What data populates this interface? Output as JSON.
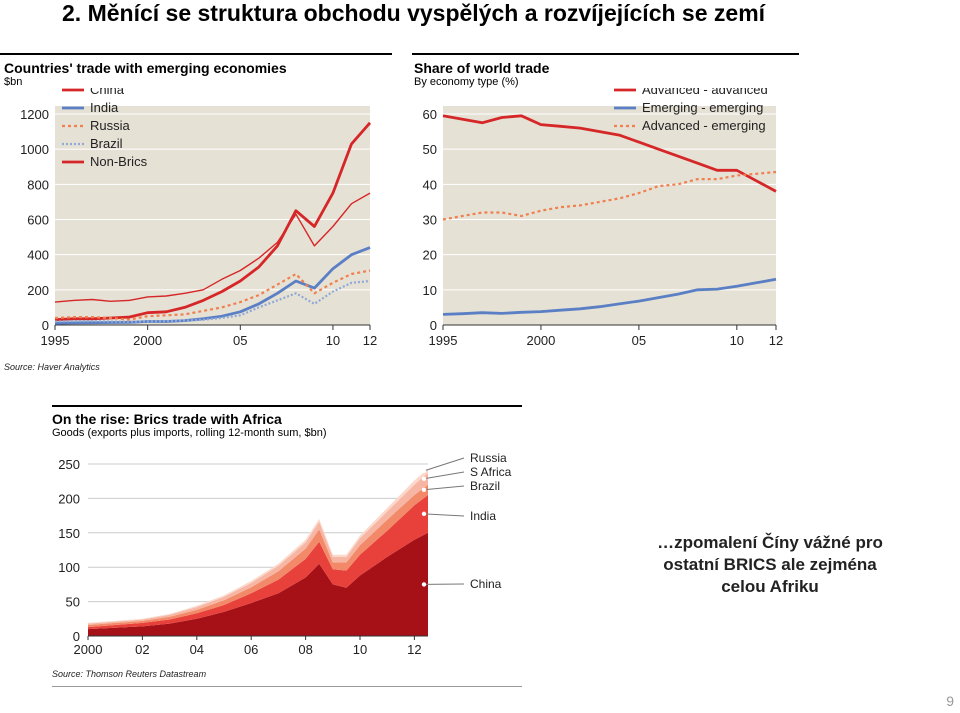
{
  "slide": {
    "title": "2. Měnící se struktura obchodu vyspělých a rozvíjejících se zemí",
    "note_lines": [
      "…zpomalení Číny vážné pro",
      "ostatní BRICS ale zejména",
      "celou Afriku"
    ],
    "page_number": "9"
  },
  "chart_data": [
    {
      "type": "line",
      "title": "Countries' trade with emerging economies",
      "subtitle": "$bn",
      "x": [
        1995,
        1996,
        1997,
        1998,
        1999,
        2000,
        2001,
        2002,
        2003,
        2004,
        2005,
        2006,
        2007,
        2008,
        2009,
        2010,
        2011,
        2012
      ],
      "x_ticks": [
        1995,
        2000,
        2005,
        2010,
        2012
      ],
      "x_tick_labels": [
        "1995",
        "2000",
        "05",
        "10",
        "12"
      ],
      "ylim": [
        0,
        1200
      ],
      "y_ticks": [
        0,
        200,
        400,
        600,
        800,
        1000,
        1200
      ],
      "series": [
        {
          "name": "China",
          "color": "#d62728",
          "values": [
            30,
            35,
            35,
            40,
            45,
            70,
            75,
            100,
            140,
            190,
            250,
            330,
            450,
            650,
            560,
            750,
            1030,
            1150
          ]
        },
        {
          "name": "India",
          "color": "#5a7fc5",
          "values": [
            10,
            12,
            13,
            14,
            15,
            20,
            20,
            25,
            35,
            50,
            75,
            120,
            180,
            250,
            210,
            320,
            400,
            440
          ]
        },
        {
          "name": "Russia",
          "color": "#f08050",
          "values": [
            40,
            45,
            45,
            40,
            30,
            50,
            55,
            60,
            80,
            100,
            130,
            170,
            230,
            290,
            180,
            240,
            290,
            310
          ]
        },
        {
          "name": "Brazil",
          "color": "#8fa8d8",
          "values": [
            20,
            22,
            22,
            20,
            18,
            20,
            22,
            25,
            30,
            40,
            55,
            100,
            140,
            180,
            120,
            190,
            240,
            250
          ]
        },
        {
          "name": "Non-Brics",
          "color": "#d62728",
          "values": [
            130,
            140,
            145,
            135,
            140,
            160,
            165,
            180,
            200,
            260,
            310,
            380,
            470,
            630,
            450,
            560,
            690,
            750
          ]
        }
      ]
    },
    {
      "type": "line",
      "title": "Share of world trade",
      "subtitle": "By economy type",
      "subtitle_unit": "(%)",
      "x": [
        1995,
        1996,
        1997,
        1998,
        1999,
        2000,
        2001,
        2002,
        2003,
        2004,
        2005,
        2006,
        2007,
        2008,
        2009,
        2010,
        2011,
        2012
      ],
      "x_ticks": [
        1995,
        2000,
        2005,
        2010,
        2012
      ],
      "x_tick_labels": [
        "1995",
        "2000",
        "05",
        "10",
        "12"
      ],
      "ylim": [
        0,
        60
      ],
      "y_ticks": [
        0,
        10,
        20,
        30,
        40,
        50,
        60
      ],
      "series": [
        {
          "name": "Advanced - advanced",
          "color": "#d62728",
          "values": [
            59.5,
            58.5,
            57.5,
            59,
            59.5,
            57,
            56.5,
            56,
            55,
            54,
            52,
            50,
            48,
            46,
            44,
            44,
            41,
            38
          ]
        },
        {
          "name": "Emerging - emerging",
          "color": "#5a7fc5",
          "values": [
            3,
            3.2,
            3.5,
            3.3,
            3.6,
            3.8,
            4.2,
            4.6,
            5.2,
            6,
            6.8,
            7.8,
            8.8,
            10,
            10.2,
            11,
            12,
            13
          ]
        },
        {
          "name": "Advanced - emerging",
          "color": "#f08050",
          "values": [
            30,
            31,
            32,
            32,
            31,
            32.5,
            33.5,
            34,
            35,
            36,
            37.5,
            39.5,
            40,
            41.5,
            41.5,
            42.5,
            43,
            43.5
          ]
        }
      ]
    },
    {
      "type": "area",
      "title": "On the rise: Brics trade with Africa",
      "subtitle": "Goods (exports plus imports, rolling 12-month sum, $bn)",
      "x": [
        2000,
        2001,
        2002,
        2003,
        2004,
        2005,
        2006,
        2007,
        2008,
        2008.5,
        2009,
        2009.5,
        2010,
        2011,
        2012,
        2012.5
      ],
      "x_ticks": [
        2000,
        2002,
        2004,
        2006,
        2008,
        2010,
        2012
      ],
      "x_tick_labels": [
        "2000",
        "02",
        "04",
        "06",
        "08",
        "10",
        "12"
      ],
      "ylim": [
        0,
        250
      ],
      "y_ticks": [
        0,
        50,
        100,
        150,
        200,
        250
      ],
      "series": [
        {
          "name": "China",
          "color": "#a51116",
          "values": [
            10,
            12,
            14,
            18,
            25,
            35,
            48,
            62,
            85,
            105,
            75,
            70,
            88,
            115,
            140,
            150
          ]
        },
        {
          "name": "India",
          "color": "#e8413c",
          "values": [
            3,
            4,
            5,
            6,
            8,
            10,
            14,
            20,
            27,
            32,
            22,
            25,
            30,
            38,
            50,
            55
          ]
        },
        {
          "name": "Brazil",
          "color": "#f28a6a",
          "values": [
            3,
            3,
            3,
            4,
            5,
            7,
            9,
            12,
            15,
            18,
            10,
            12,
            14,
            16,
            15,
            15
          ]
        },
        {
          "name": "S Africa",
          "color": "#f7b6a3",
          "values": [
            2,
            2,
            2,
            3,
            4,
            5,
            6,
            8,
            9,
            11,
            8,
            8,
            10,
            12,
            15,
            17
          ]
        },
        {
          "name": "Russia",
          "color": "#fbd8ca",
          "values": [
            1,
            1,
            1,
            1,
            2,
            2,
            3,
            3,
            4,
            4,
            3,
            3,
            4,
            5,
            6,
            6
          ]
        }
      ]
    }
  ],
  "sources": {
    "top": "Source: Haver Analytics",
    "bottom": "Source: Thomson Reuters Datastream"
  }
}
